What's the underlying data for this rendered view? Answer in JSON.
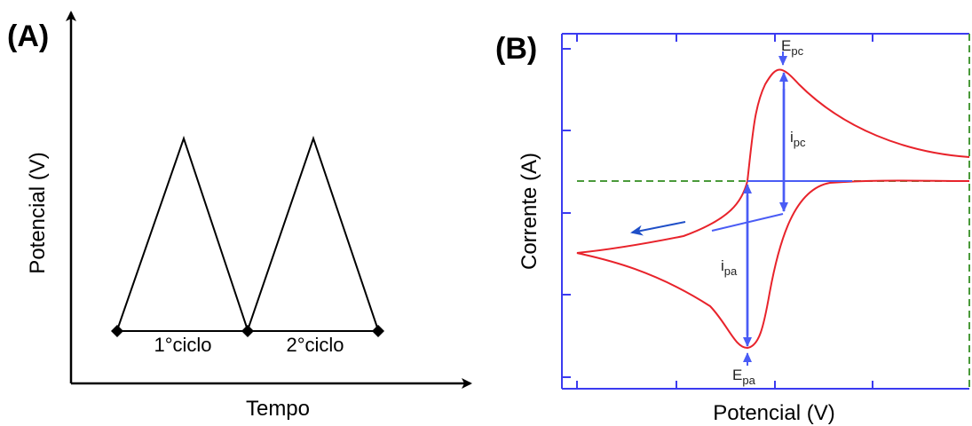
{
  "panel_a": {
    "label": "(A)",
    "xlabel": "Tempo",
    "ylabel": "Potencial (V)",
    "cycles": [
      "1°ciclo",
      "2°ciclo"
    ]
  },
  "panel_b": {
    "label": "(B)",
    "xlabel": "Potencial (V)",
    "ylabel": "Corrente (A)",
    "annotations": {
      "epc": {
        "main": "E",
        "sub": "pc"
      },
      "ipc": {
        "main": "i",
        "sub": "pc"
      },
      "ipa": {
        "main": "i",
        "sub": "pa"
      },
      "epa": {
        "main": "E",
        "sub": "pa"
      }
    }
  },
  "colors": {
    "axis_a": "#000000",
    "frame_b": "#3b3bf0",
    "curve": "#e8232b",
    "arrows": "#4a5cf5",
    "baseline": "#4a9a3a",
    "direction_arrow": "#1f4fc8"
  }
}
